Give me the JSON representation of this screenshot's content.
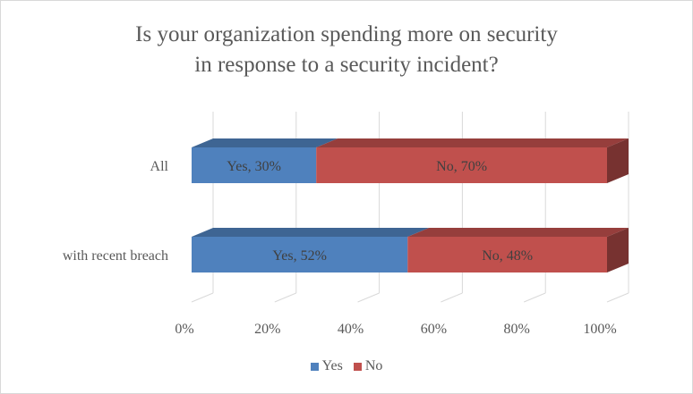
{
  "chart_data": {
    "type": "bar",
    "orientation": "horizontal",
    "stacked": "100%",
    "style": "3d",
    "title_lines": [
      "Is your organization spending more on security",
      "in response to a security incident?"
    ],
    "categories": [
      "All",
      "with recent breach"
    ],
    "series": [
      {
        "name": "Yes",
        "values": [
          30,
          52
        ],
        "color": "#4f81bd",
        "labels": [
          "Yes, 30%",
          "Yes, 52%"
        ]
      },
      {
        "name": "No",
        "values": [
          70,
          48
        ],
        "color": "#c0504d",
        "labels": [
          "No, 70%",
          "No, 48%"
        ]
      }
    ],
    "x_ticks": [
      "0%",
      "20%",
      "40%",
      "60%",
      "80%",
      "100%"
    ],
    "xlim": [
      0,
      100
    ],
    "grid": true,
    "legend": "bottom"
  }
}
